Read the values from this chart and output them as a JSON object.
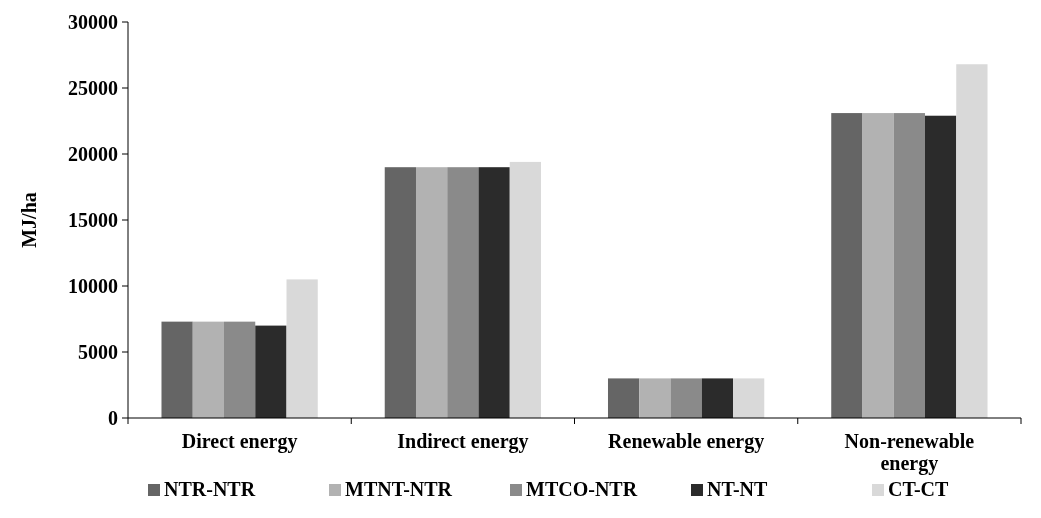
{
  "chart_data": {
    "type": "bar",
    "ylabel": "MJ/ha",
    "categories": [
      "Direct energy",
      "Indirect energy",
      "Renewable energy",
      "Non-renewable energy"
    ],
    "series": [
      {
        "name": "NTR-NTR",
        "color": "#656565",
        "values": [
          7300,
          19000,
          3000,
          23100
        ]
      },
      {
        "name": "MTNT-NTR",
        "color": "#b2b2b2",
        "values": [
          7300,
          19000,
          3000,
          23100
        ]
      },
      {
        "name": "MTCO-NTR",
        "color": "#8a8a8a",
        "values": [
          7300,
          19000,
          3000,
          23100
        ]
      },
      {
        "name": "NT-NT",
        "color": "#2b2b2b",
        "values": [
          7000,
          19000,
          3000,
          22900
        ]
      },
      {
        "name": "CT-CT",
        "color": "#d9d9d9",
        "values": [
          10500,
          19400,
          3000,
          26800
        ]
      }
    ],
    "ylim": [
      0,
      30000
    ],
    "yticks": [
      0,
      5000,
      10000,
      15000,
      20000,
      25000,
      30000
    ],
    "grid": false,
    "legend": "bottom"
  }
}
